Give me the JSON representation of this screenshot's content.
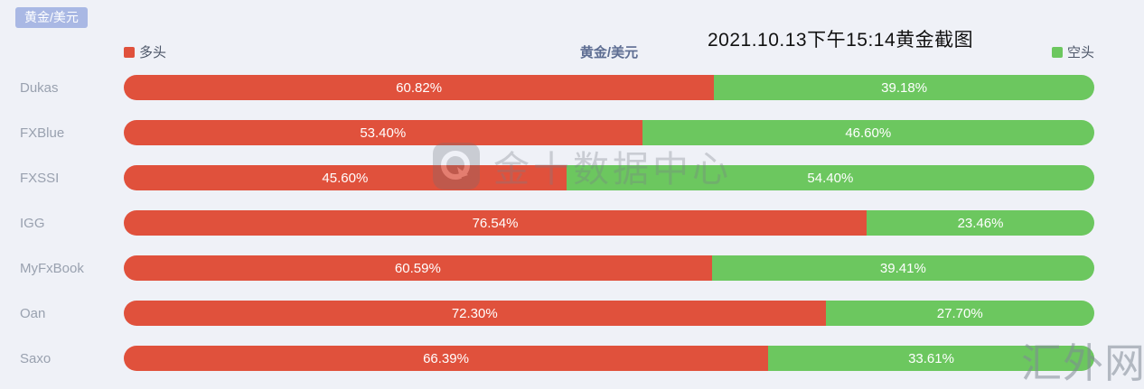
{
  "badge": {
    "label": "黄金/美元"
  },
  "header": {
    "title": "2021.10.13下午15:14黄金截图"
  },
  "chart": {
    "title": "黄金/美元",
    "legend": [
      {
        "name": "多头",
        "color": "#e0513c"
      },
      {
        "name": "空头",
        "color": "#6cc75f"
      }
    ]
  },
  "chart_data": {
    "type": "bar",
    "orientation": "horizontal",
    "stacked": true,
    "title": "黄金/美元",
    "categories": [
      "Dukas",
      "FXBlue",
      "FXSSI",
      "IGG",
      "MyFxBook",
      "Oan",
      "Saxo"
    ],
    "series": [
      {
        "name": "多头",
        "color": "#e0513c",
        "values": [
          60.82,
          53.4,
          45.6,
          76.54,
          60.59,
          72.3,
          66.39
        ]
      },
      {
        "name": "空头",
        "color": "#6cc75f",
        "values": [
          39.18,
          46.6,
          54.4,
          23.46,
          39.41,
          27.7,
          33.61
        ]
      }
    ],
    "value_format": "percent",
    "xlim": [
      0,
      100
    ],
    "legend_position": "top",
    "grid": false
  },
  "watermarks": {
    "center_text": "金十数据中心",
    "center_logo": "jin10-logo",
    "corner_text": "汇外网"
  },
  "colors": {
    "long": "#e0513c",
    "short": "#6cc75f",
    "background": "#eff1f7",
    "badge_bg": "#a9b8e4",
    "category_label": "#99a1af",
    "chart_title": "#5d6d92"
  }
}
